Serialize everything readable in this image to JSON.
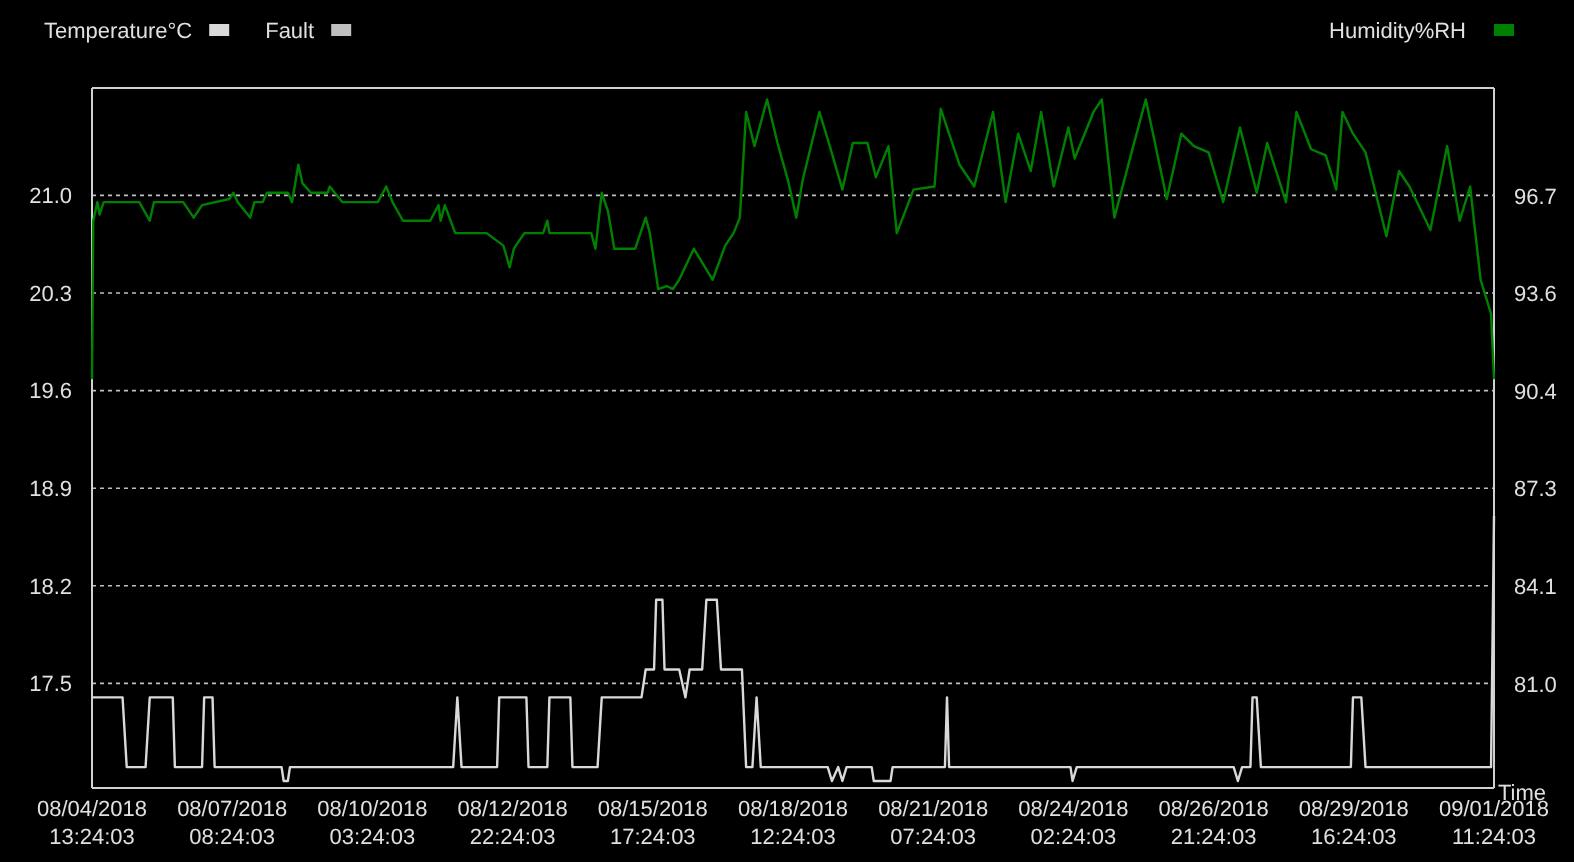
{
  "chart_data": {
    "type": "line",
    "xlabel": "Time",
    "legend": "top",
    "grid": "y",
    "xlim": [
      "2018-08-04T13:24:03",
      "2018-09-01T11:24:03"
    ],
    "xticks": [
      {
        "value": "2018-08-04T13:24:03",
        "label": "08/04/2018\n13:24:03"
      },
      {
        "value": "2018-08-07T08:24:03",
        "label": "08/07/2018\n08:24:03"
      },
      {
        "value": "2018-08-10T03:24:03",
        "label": "08/10/2018\n03:24:03"
      },
      {
        "value": "2018-08-12T22:24:03",
        "label": "08/12/2018\n22:24:03"
      },
      {
        "value": "2018-08-15T17:24:03",
        "label": "08/15/2018\n17:24:03"
      },
      {
        "value": "2018-08-18T12:24:03",
        "label": "08/18/2018\n12:24:03"
      },
      {
        "value": "2018-08-21T07:24:03",
        "label": "08/21/2018\n07:24:03"
      },
      {
        "value": "2018-08-24T02:24:03",
        "label": "08/24/2018\n02:24:03"
      },
      {
        "value": "2018-08-26T21:24:03",
        "label": "08/26/2018\n21:24:03"
      },
      {
        "value": "2018-08-29T16:24:03",
        "label": "08/29/2018\n16:24:03"
      },
      {
        "value": "2018-09-01T11:24:03",
        "label": "09/01/2018\n11:24:03"
      }
    ],
    "ylim": [
      16.75,
      21.77
    ],
    "yticks": [
      17.5,
      18.2,
      18.9,
      19.6,
      20.3,
      {
        "value": 21.0,
        "label": "21.0"
      }
    ],
    "y2lim": [
      77.65,
      100.17
    ],
    "y2ticks": [
      {
        "value": 81.0,
        "label": "81.0"
      },
      {
        "value": 84.14,
        "label": "84.1"
      },
      {
        "value": 87.28,
        "label": "87.3"
      },
      {
        "value": 90.42,
        "label": "90.4"
      },
      {
        "value": 93.56,
        "label": "93.6"
      },
      {
        "value": 96.7,
        "label": "96.7"
      }
    ],
    "series": [
      {
        "name": "Temperature°C",
        "color": "#d9d9d9",
        "x": [
          "2018-08-04T13:24:03",
          "2018-08-05T04:00",
          "2018-08-05T06:00",
          "2018-08-05T15:00",
          "2018-08-05T17:00",
          "2018-08-06T04:00",
          "2018-08-06T05:00",
          "2018-08-06T18:00",
          "2018-08-06T19:00",
          "2018-08-06T23:00",
          "2018-08-07T00:00",
          "2018-08-08T08:00",
          "2018-08-08T09:00",
          "2018-08-08T11:00",
          "2018-08-08T12:00",
          "2018-08-11T18:00",
          "2018-08-11T20:00",
          "2018-08-11T22:00",
          "2018-08-12T15:00",
          "2018-08-12T16:00",
          "2018-08-13T05:00",
          "2018-08-13T06:00",
          "2018-08-13T15:00",
          "2018-08-13T16:00",
          "2018-08-14T02:00",
          "2018-08-14T03:00",
          "2018-08-14T15:00",
          "2018-08-14T17:00",
          "2018-08-15T12:00",
          "2018-08-15T14:00",
          "2018-08-15T18:00",
          "2018-08-15T19:00",
          "2018-08-15T22:00",
          "2018-08-15T23:00",
          "2018-08-16T06:00",
          "2018-08-16T09:00",
          "2018-08-16T11:00",
          "2018-08-16T17:00",
          "2018-08-16T19:00",
          "2018-08-17T00:00",
          "2018-08-17T02:00",
          "2018-08-17T12:00",
          "2018-08-17T14:00",
          "2018-08-17T17:00",
          "2018-08-17T19:00",
          "2018-08-17T21:00",
          "2018-08-19T05:00",
          "2018-08-19T07:00",
          "2018-08-19T10:00",
          "2018-08-19T12:00",
          "2018-08-19T14:00",
          "2018-08-20T02:00",
          "2018-08-20T03:00",
          "2018-08-20T11:00",
          "2018-08-20T12:00",
          "2018-08-21T13:00",
          "2018-08-21T14:00",
          "2018-08-21T15:00",
          "2018-08-24T01:00",
          "2018-08-24T02:00",
          "2018-08-24T04:00",
          "2018-08-27T07:00",
          "2018-08-27T09:00",
          "2018-08-27T11:00",
          "2018-08-27T15:00",
          "2018-08-27T16:00",
          "2018-08-27T18:00",
          "2018-08-27T20:00",
          "2018-08-29T15:00",
          "2018-08-29T16:00",
          "2018-08-29T20:00",
          "2018-08-29T22:00",
          "2018-09-01T10:00",
          "2018-09-01T11:24:03"
        ],
        "values": [
          17.4,
          17.4,
          16.9,
          16.9,
          17.4,
          17.4,
          16.9,
          16.9,
          17.4,
          17.4,
          16.9,
          16.9,
          16.8,
          16.8,
          16.9,
          16.9,
          17.4,
          16.9,
          16.9,
          17.4,
          17.4,
          16.9,
          16.9,
          17.4,
          17.4,
          16.9,
          16.9,
          17.4,
          17.4,
          17.6,
          17.6,
          18.1,
          18.1,
          17.6,
          17.6,
          17.4,
          17.6,
          17.6,
          18.1,
          18.1,
          17.6,
          17.6,
          16.9,
          16.9,
          17.4,
          16.9,
          16.9,
          16.8,
          16.9,
          16.8,
          16.9,
          16.9,
          16.8,
          16.8,
          16.9,
          16.9,
          17.4,
          16.9,
          16.9,
          16.8,
          16.9,
          16.9,
          16.8,
          16.9,
          16.9,
          17.4,
          17.4,
          16.9,
          16.9,
          17.4,
          17.4,
          16.9,
          16.9,
          18.7
        ]
      },
      {
        "name": "Fault",
        "color": "#bfbfbf"
      },
      {
        "name": "Humidity%RH",
        "color": "#008000",
        "axis": "y2",
        "x": [
          "2018-08-04T13:24:03",
          "2018-08-04T14:00",
          "2018-08-04T16:00",
          "2018-08-04T17:00",
          "2018-08-04T19:00",
          "2018-08-05T12:00",
          "2018-08-05T17:00",
          "2018-08-05T19:00",
          "2018-08-06T09:00",
          "2018-08-06T14:00",
          "2018-08-06T18:00",
          "2018-08-07T07:00",
          "2018-08-07T09:00",
          "2018-08-07T11:00",
          "2018-08-07T17:00",
          "2018-08-07T19:00",
          "2018-08-07T23:00",
          "2018-08-08T01:00",
          "2018-08-08T11:00",
          "2018-08-08T13:00",
          "2018-08-08T16:00",
          "2018-08-08T18:00",
          "2018-08-08T22:00",
          "2018-08-09T06:00",
          "2018-08-09T07:00",
          "2018-08-09T13:00",
          "2018-08-10T06:00",
          "2018-08-10T10:00",
          "2018-08-10T13:00",
          "2018-08-10T18:00",
          "2018-08-11T07:00",
          "2018-08-11T11:00",
          "2018-08-11T12:00",
          "2018-08-11T14:00",
          "2018-08-11T19:00",
          "2018-08-12T10:00",
          "2018-08-12T18:00",
          "2018-08-12T21:00",
          "2018-08-12T23:00",
          "2018-08-13T04:00",
          "2018-08-13T13:00",
          "2018-08-13T15:00",
          "2018-08-13T16:00",
          "2018-08-14T12:00",
          "2018-08-14T14:00",
          "2018-08-14T17:00",
          "2018-08-14T20:00",
          "2018-08-14T23:00",
          "2018-08-15T09:00",
          "2018-08-15T14:00",
          "2018-08-15T16:00",
          "2018-08-15T20:00",
          "2018-08-16T00:00",
          "2018-08-16T03:00",
          "2018-08-16T06:00",
          "2018-08-16T13:00",
          "2018-08-16T22:00",
          "2018-08-17T04:00",
          "2018-08-17T08:00",
          "2018-08-17T11:00",
          "2018-08-17T14:00",
          "2018-08-17T18:00",
          "2018-08-18T00:00",
          "2018-08-18T05:00",
          "2018-08-18T10:00",
          "2018-08-18T14:00",
          "2018-08-18T17:00",
          "2018-08-19T01:00",
          "2018-08-19T06:00",
          "2018-08-19T12:00",
          "2018-08-19T17:00",
          "2018-08-20T00:00",
          "2018-08-20T04:00",
          "2018-08-20T10:00",
          "2018-08-20T14:00",
          "2018-08-20T22:00",
          "2018-08-21T08:00",
          "2018-08-21T11:00",
          "2018-08-21T20:00",
          "2018-08-22T03:00",
          "2018-08-22T12:00",
          "2018-08-22T18:00",
          "2018-08-23T00:00",
          "2018-08-23T06:00",
          "2018-08-23T11:00",
          "2018-08-23T17:00",
          "2018-08-24T00:00",
          "2018-08-24T03:00",
          "2018-08-24T12:00",
          "2018-08-24T16:00",
          "2018-08-24T22:00",
          "2018-08-25T07:00",
          "2018-08-25T13:00",
          "2018-08-25T23:00",
          "2018-08-26T06:00",
          "2018-08-26T12:00",
          "2018-08-26T19:00",
          "2018-08-27T02:00",
          "2018-08-27T10:00",
          "2018-08-27T18:00",
          "2018-08-27T23:00",
          "2018-08-28T08:00",
          "2018-08-28T13:00",
          "2018-08-28T20:00",
          "2018-08-29T03:00",
          "2018-08-29T08:00",
          "2018-08-29T11:00",
          "2018-08-29T16:00",
          "2018-08-29T22:00",
          "2018-08-30T08:00",
          "2018-08-30T14:00",
          "2018-08-30T19:00",
          "2018-08-31T05:00",
          "2018-08-31T13:00",
          "2018-08-31T19:00",
          "2018-09-01T00:00",
          "2018-09-01T05:00",
          "2018-09-01T10:00",
          "2018-09-01T11:24:03"
        ],
        "values": [
          90.8,
          95.9,
          96.5,
          96.1,
          96.5,
          96.5,
          95.9,
          96.5,
          96.5,
          96.0,
          96.4,
          96.6,
          96.8,
          96.5,
          96.0,
          96.5,
          96.5,
          96.8,
          96.8,
          96.5,
          97.7,
          97.1,
          96.8,
          96.8,
          97.0,
          96.5,
          96.5,
          97.0,
          96.5,
          95.9,
          95.9,
          96.4,
          95.9,
          96.4,
          95.5,
          95.5,
          95.1,
          94.4,
          95.0,
          95.5,
          95.5,
          95.9,
          95.5,
          95.5,
          95.0,
          96.8,
          96.2,
          95.0,
          95.0,
          96.0,
          95.5,
          93.7,
          93.8,
          93.7,
          94.0,
          95.0,
          94.0,
          95.1,
          95.5,
          96.0,
          99.4,
          98.3,
          99.8,
          98.4,
          97.2,
          96.0,
          97.2,
          99.4,
          98.3,
          96.9,
          98.4,
          98.4,
          97.3,
          98.3,
          95.5,
          96.9,
          97.0,
          99.5,
          97.7,
          97.0,
          99.4,
          96.5,
          98.7,
          97.5,
          99.4,
          97.0,
          98.9,
          97.9,
          99.4,
          99.8,
          96.0,
          98.3,
          99.8,
          96.6,
          98.7,
          98.3,
          98.1,
          96.5,
          98.9,
          96.8,
          98.4,
          96.5,
          99.4,
          98.2,
          98.0,
          96.9,
          99.4,
          98.7,
          98.1,
          95.4,
          97.5,
          97.0,
          95.6,
          98.3,
          95.9,
          97.0,
          94.0,
          92.9,
          90.8
        ]
      }
    ]
  }
}
